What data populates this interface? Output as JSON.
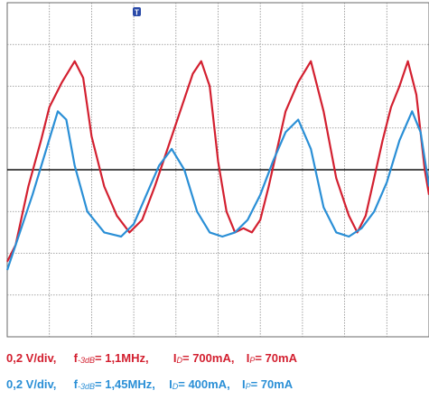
{
  "chart_data": {
    "type": "line",
    "trigger_marker": "T",
    "series": [
      {
        "color": "#d32030",
        "x": [
          0,
          0.2,
          0.5,
          0.8,
          1.0,
          1.3,
          1.6,
          1.8,
          2.0,
          2.3,
          2.6,
          2.9,
          3.2,
          3.5,
          3.8,
          4.1,
          4.4,
          4.6,
          4.8,
          5.0,
          5.2,
          5.4,
          5.6,
          5.8,
          6.0,
          6.2,
          6.4,
          6.6,
          6.9,
          7.2,
          7.5,
          7.8,
          8.1,
          8.3,
          8.5,
          8.7,
          8.9,
          9.1,
          9.3,
          9.5,
          9.7,
          9.9,
          10
        ],
        "y": [
          -1.1,
          -0.9,
          -0.2,
          0.35,
          0.75,
          1.05,
          1.3,
          1.1,
          0.4,
          -0.2,
          -0.55,
          -0.75,
          -0.6,
          -0.2,
          0.25,
          0.7,
          1.15,
          1.3,
          1.0,
          0.1,
          -0.5,
          -0.75,
          -0.7,
          -0.75,
          -0.6,
          -0.2,
          0.25,
          0.7,
          1.05,
          1.3,
          0.7,
          -0.1,
          -0.55,
          -0.75,
          -0.55,
          -0.1,
          0.35,
          0.75,
          1.0,
          1.3,
          0.9,
          0.0,
          -0.3
        ]
      },
      {
        "color": "#2a8fd6",
        "x": [
          0,
          0.3,
          0.6,
          0.9,
          1.2,
          1.4,
          1.6,
          1.9,
          2.3,
          2.7,
          3.0,
          3.3,
          3.6,
          3.9,
          4.2,
          4.5,
          4.8,
          5.1,
          5.4,
          5.7,
          6.0,
          6.3,
          6.6,
          6.9,
          7.2,
          7.5,
          7.8,
          8.1,
          8.4,
          8.7,
          9.0,
          9.3,
          9.6,
          9.8,
          10
        ],
        "y": [
          -1.2,
          -0.75,
          -0.3,
          0.2,
          0.7,
          0.6,
          0.05,
          -0.5,
          -0.75,
          -0.8,
          -0.65,
          -0.3,
          0.05,
          0.25,
          0.0,
          -0.5,
          -0.75,
          -0.8,
          -0.75,
          -0.6,
          -0.3,
          0.1,
          0.45,
          0.6,
          0.25,
          -0.45,
          -0.75,
          -0.8,
          -0.7,
          -0.5,
          -0.15,
          0.35,
          0.7,
          0.45,
          -0.2
        ]
      }
    ],
    "xlim": [
      0,
      10
    ],
    "ylim": [
      -2,
      2
    ],
    "grid": true
  },
  "captions": [
    {
      "color": "#d32030",
      "vdiv": "0,2 V/div,",
      "f_sym": "f",
      "f_sub": "-3dB",
      "f_val": " = 1,1MHz,",
      "id_sym": "I",
      "id_sub": "D",
      "id_val": " = 700mA,",
      "ip_sym": "I",
      "ip_sub": "P",
      "ip_val": " = 70mA"
    },
    {
      "color": "#2a8fd6",
      "vdiv": "0,2 V/div,",
      "f_sym": "f",
      "f_sub": "-3dB",
      "f_val": " = 1,45MHz,",
      "id_sym": "I",
      "id_sub": "D",
      "id_val": " = 400mA,",
      "ip_sym": "I",
      "ip_sub": "P",
      "ip_val": " = 70mA"
    }
  ]
}
